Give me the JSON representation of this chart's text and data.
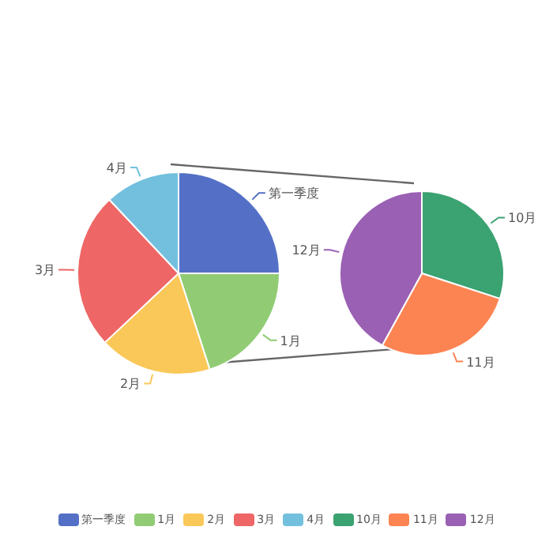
{
  "chart_data": [
    {
      "type": "pie",
      "categories": [
        "第一季度",
        "1月",
        "2月",
        "3月",
        "4月"
      ],
      "values": [
        25,
        20,
        18,
        25,
        12
      ],
      "colors": [
        "#5470c6",
        "#91cc75",
        "#fac858",
        "#ee6666",
        "#73c0de"
      ],
      "legend": "bottom"
    },
    {
      "type": "pie",
      "categories": [
        "10月",
        "11月",
        "12月"
      ],
      "values": [
        30,
        28,
        42
      ],
      "colors": [
        "#3ba272",
        "#fc8452",
        "#9a60b4"
      ],
      "legend": "bottom"
    }
  ]
}
